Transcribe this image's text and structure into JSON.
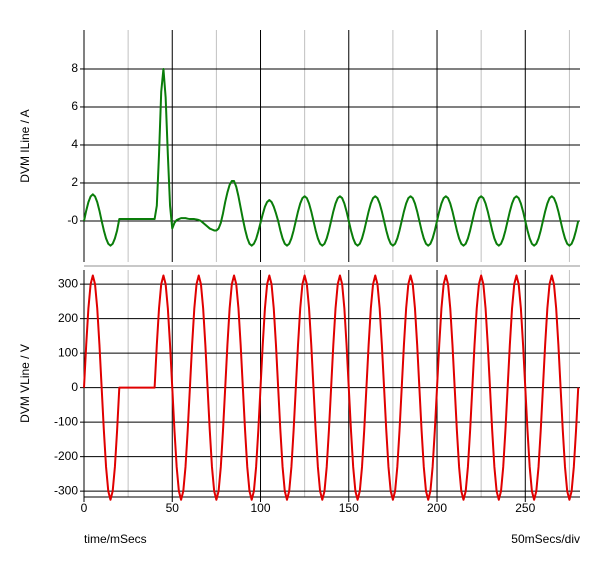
{
  "chart_data": [
    {
      "type": "line",
      "ylabel": "DVM ILine / A",
      "xlim": [
        0,
        281
      ],
      "xminorticks": [
        25,
        75,
        125,
        175,
        225,
        275
      ],
      "xgrid": [
        0,
        50,
        100,
        150,
        200,
        250
      ],
      "ylim": [
        -2.16,
        10.05
      ],
      "yticks": [
        {
          "value": 0,
          "label": "-0"
        },
        2,
        4,
        6,
        8
      ],
      "grid": true,
      "series": [
        {
          "color": "#0a7d0a",
          "x": [
            0,
            1.25,
            2.5,
            3.75,
            5,
            6.25,
            7.5,
            8.75,
            10,
            11.25,
            12.5,
            13.75,
            15,
            16.25,
            17.5,
            18.75,
            20,
            21.25,
            22.5,
            23.75,
            25,
            26.25,
            27.5,
            28.75,
            30,
            31.25,
            32.5,
            33.75,
            35,
            36.25,
            37.5,
            38.75,
            40,
            41.25,
            42.5,
            43.75,
            45,
            46.25,
            47.5,
            48.75,
            50,
            51.25,
            52.5,
            53.75,
            55,
            56.25,
            57.5,
            58.75,
            60,
            61.25,
            62.5,
            63.75,
            65,
            66.25,
            67.5,
            68.75,
            70,
            71.25,
            72.5,
            73.75,
            75,
            76.25,
            77.5,
            78.75,
            80,
            81.25,
            82.5,
            83.75,
            85,
            86.25,
            87.5,
            88.75,
            90,
            91.25,
            92.5,
            93.75,
            95,
            96.25,
            97.5,
            98.75,
            100,
            101.25,
            102.5,
            103.75,
            105,
            106.25,
            107.5,
            108.75,
            110,
            111.25,
            112.5,
            113.75,
            115,
            116.25,
            117.5,
            118.75,
            120,
            121.25,
            122.5,
            123.75,
            125,
            126.25,
            127.5,
            128.75,
            130,
            131.25,
            132.5,
            133.75,
            135,
            136.25,
            137.5,
            138.75,
            140,
            141.25,
            142.5,
            143.75,
            145,
            146.25,
            147.5,
            148.75,
            150,
            151.25,
            152.5,
            153.75,
            155,
            156.25,
            157.5,
            158.75,
            160,
            161.25,
            162.5,
            163.75,
            165,
            166.25,
            167.5,
            168.75,
            170,
            171.25,
            172.5,
            173.75,
            175,
            176.25,
            177.5,
            178.75,
            180,
            181.25,
            182.5,
            183.75,
            185,
            186.25,
            187.5,
            188.75,
            190,
            191.25,
            192.5,
            193.75,
            195,
            196.25,
            197.5,
            198.75,
            200,
            201.25,
            202.5,
            203.75,
            205,
            206.25,
            207.5,
            208.75,
            210,
            211.25,
            212.5,
            213.75,
            215,
            216.25,
            217.5,
            218.75,
            220,
            221.25,
            222.5,
            223.75,
            225,
            226.25,
            227.5,
            228.75,
            230,
            231.25,
            232.5,
            233.75,
            235,
            236.25,
            237.5,
            238.75,
            240,
            241.25,
            242.5,
            243.75,
            245,
            246.25,
            247.5,
            248.75,
            250,
            251.25,
            252.5,
            253.75,
            255,
            256.25,
            257.5,
            258.75,
            260,
            261.25,
            262.5,
            263.75,
            265,
            266.25,
            267.5,
            268.75,
            270,
            271.25,
            272.5,
            273.75,
            275,
            276.25,
            277.5,
            278.75,
            280
          ],
          "values": [
            0,
            0.54,
            0.99,
            1.29,
            1.4,
            1.29,
            0.99,
            0.54,
            0,
            -0.5,
            -0.92,
            -1.2,
            -1.3,
            -1.2,
            -0.92,
            -0.5,
            0.1,
            0.1,
            0.1,
            0.1,
            0.1,
            0.1,
            0.1,
            0.1,
            0.1,
            0.1,
            0.1,
            0.1,
            0.1,
            0.1,
            0.1,
            0.1,
            0.1,
            0.8,
            3.5,
            6.8,
            8.0,
            6.5,
            3.5,
            0.8,
            -0.4,
            -0.1,
            0.05,
            0.1,
            0.15,
            0.15,
            0.15,
            0.12,
            0.1,
            0.1,
            0.1,
            0.08,
            0.05,
            0,
            -0.1,
            -0.2,
            -0.3,
            -0.4,
            -0.45,
            -0.5,
            -0.5,
            -0.4,
            -0.1,
            0.4,
            1.0,
            1.5,
            1.9,
            2.1,
            2.1,
            1.8,
            1.3,
            0.7,
            0.1,
            -0.45,
            -0.9,
            -1.2,
            -1.3,
            -1.2,
            -0.95,
            -0.55,
            -0.1,
            0.35,
            0.75,
            1.0,
            1.1,
            1.0,
            0.75,
            0.4,
            0,
            -0.5,
            -0.92,
            -1.2,
            -1.3,
            -1.2,
            -0.92,
            -0.5,
            0,
            0.5,
            0.92,
            1.2,
            1.3,
            1.2,
            0.92,
            0.5,
            0,
            -0.5,
            -0.92,
            -1.2,
            -1.3,
            -1.2,
            -0.92,
            -0.5,
            0,
            0.5,
            0.92,
            1.2,
            1.3,
            1.2,
            0.92,
            0.5,
            0,
            -0.5,
            -0.92,
            -1.2,
            -1.3,
            -1.2,
            -0.92,
            -0.5,
            0,
            0.5,
            0.92,
            1.2,
            1.3,
            1.2,
            0.92,
            0.5,
            0,
            -0.5,
            -0.92,
            -1.2,
            -1.3,
            -1.2,
            -0.92,
            -0.5,
            0,
            0.5,
            0.92,
            1.2,
            1.3,
            1.2,
            0.92,
            0.5,
            0,
            -0.5,
            -0.92,
            -1.2,
            -1.3,
            -1.2,
            -0.92,
            -0.5,
            0,
            0.5,
            0.92,
            1.2,
            1.3,
            1.2,
            0.92,
            0.5,
            0,
            -0.5,
            -0.92,
            -1.2,
            -1.3,
            -1.2,
            -0.92,
            -0.5,
            0,
            0.5,
            0.92,
            1.2,
            1.3,
            1.2,
            0.92,
            0.5,
            0,
            -0.5,
            -0.92,
            -1.2,
            -1.3,
            -1.2,
            -0.92,
            -0.5,
            0,
            0.5,
            0.92,
            1.2,
            1.3,
            1.2,
            0.92,
            0.5,
            0,
            -0.5,
            -0.92,
            -1.2,
            -1.3,
            -1.2,
            -0.92,
            -0.5,
            0,
            0.5,
            0.92,
            1.2,
            1.3,
            1.2,
            0.92,
            0.5,
            0,
            -0.5,
            -0.92,
            -1.2,
            -1.3,
            -1.2,
            -0.92,
            -0.5,
            0
          ]
        }
      ]
    },
    {
      "type": "line",
      "ylabel": "DVM VLine / V",
      "xlabel": "time/mSecs",
      "annotation": "50mSecs/div",
      "xlim": [
        0,
        281
      ],
      "xticks": [
        0,
        50,
        100,
        150,
        200,
        250
      ],
      "xminorticks": [
        25,
        75,
        125,
        175,
        225,
        275
      ],
      "ylim": [
        -317,
        341
      ],
      "yticks": [
        -300,
        -200,
        -100,
        0,
        100,
        200,
        300
      ],
      "grid": true,
      "series": [
        {
          "color": "#e00000",
          "x": [
            0,
            1.25,
            2.5,
            3.75,
            5,
            6.25,
            7.5,
            8.75,
            10,
            11.25,
            12.5,
            13.75,
            15,
            16.25,
            17.5,
            18.75,
            20,
            21.25,
            22.5,
            23.75,
            25,
            26.25,
            27.5,
            28.75,
            30,
            31.25,
            32.5,
            33.75,
            35,
            36.25,
            37.5,
            38.75,
            40,
            41.25,
            42.5,
            43.75,
            45,
            46.25,
            47.5,
            48.75,
            50,
            51.25,
            52.5,
            53.75,
            55,
            56.25,
            57.5,
            58.75,
            60,
            61.25,
            62.5,
            63.75,
            65,
            66.25,
            67.5,
            68.75,
            70,
            71.25,
            72.5,
            73.75,
            75,
            76.25,
            77.5,
            78.75,
            80,
            81.25,
            82.5,
            83.75,
            85,
            86.25,
            87.5,
            88.75,
            90,
            91.25,
            92.5,
            93.75,
            95,
            96.25,
            97.5,
            98.75,
            100,
            101.25,
            102.5,
            103.75,
            105,
            106.25,
            107.5,
            108.75,
            110,
            111.25,
            112.5,
            113.75,
            115,
            116.25,
            117.5,
            118.75,
            120,
            121.25,
            122.5,
            123.75,
            125,
            126.25,
            127.5,
            128.75,
            130,
            131.25,
            132.5,
            133.75,
            135,
            136.25,
            137.5,
            138.75,
            140,
            141.25,
            142.5,
            143.75,
            145,
            146.25,
            147.5,
            148.75,
            150,
            151.25,
            152.5,
            153.75,
            155,
            156.25,
            157.5,
            158.75,
            160,
            161.25,
            162.5,
            163.75,
            165,
            166.25,
            167.5,
            168.75,
            170,
            171.25,
            172.5,
            173.75,
            175,
            176.25,
            177.5,
            178.75,
            180,
            181.25,
            182.5,
            183.75,
            185,
            186.25,
            187.5,
            188.75,
            190,
            191.25,
            192.5,
            193.75,
            195,
            196.25,
            197.5,
            198.75,
            200,
            201.25,
            202.5,
            203.75,
            205,
            206.25,
            207.5,
            208.75,
            210,
            211.25,
            212.5,
            213.75,
            215,
            216.25,
            217.5,
            218.75,
            220,
            221.25,
            222.5,
            223.75,
            225,
            226.25,
            227.5,
            228.75,
            230,
            231.25,
            232.5,
            233.75,
            235,
            236.25,
            237.5,
            238.75,
            240,
            241.25,
            242.5,
            243.75,
            245,
            246.25,
            247.5,
            248.75,
            250,
            251.25,
            252.5,
            253.75,
            255,
            256.25,
            257.5,
            258.75,
            260,
            261.25,
            262.5,
            263.75,
            265,
            266.25,
            267.5,
            268.75,
            270,
            271.25,
            272.5,
            273.75,
            275,
            276.25,
            277.5,
            278.75,
            280
          ],
          "values": [
            0,
            124,
            230,
            300,
            325,
            300,
            230,
            124,
            0,
            -124,
            -230,
            -300,
            -325,
            -300,
            -230,
            -124,
            0,
            0,
            0,
            0,
            0,
            0,
            0,
            0,
            0,
            0,
            0,
            0,
            0,
            0,
            0,
            0,
            0,
            124,
            230,
            300,
            325,
            300,
            230,
            124,
            0,
            -124,
            -230,
            -300,
            -325,
            -300,
            -230,
            -124,
            0,
            124,
            230,
            300,
            325,
            300,
            230,
            124,
            0,
            -124,
            -230,
            -300,
            -325,
            -300,
            -230,
            -124,
            0,
            124,
            230,
            300,
            325,
            300,
            230,
            124,
            0,
            -124,
            -230,
            -300,
            -325,
            -300,
            -230,
            -124,
            0,
            124,
            230,
            300,
            325,
            300,
            230,
            124,
            0,
            -124,
            -230,
            -300,
            -325,
            -300,
            -230,
            -124,
            0,
            124,
            230,
            300,
            325,
            300,
            230,
            124,
            0,
            -124,
            -230,
            -300,
            -325,
            -300,
            -230,
            -124,
            0,
            124,
            230,
            300,
            325,
            300,
            230,
            124,
            0,
            -124,
            -230,
            -300,
            -325,
            -300,
            -230,
            -124,
            0,
            124,
            230,
            300,
            325,
            300,
            230,
            124,
            0,
            -124,
            -230,
            -300,
            -325,
            -300,
            -230,
            -124,
            0,
            124,
            230,
            300,
            325,
            300,
            230,
            124,
            0,
            -124,
            -230,
            -300,
            -325,
            -300,
            -230,
            -124,
            0,
            124,
            230,
            300,
            325,
            300,
            230,
            124,
            0,
            -124,
            -230,
            -300,
            -325,
            -300,
            -230,
            -124,
            0,
            124,
            230,
            300,
            325,
            300,
            230,
            124,
            0,
            -124,
            -230,
            -300,
            -325,
            -300,
            -230,
            -124,
            0,
            124,
            230,
            300,
            325,
            300,
            230,
            124,
            0,
            -124,
            -230,
            -300,
            -325,
            -300,
            -230,
            -124,
            0,
            124,
            230,
            300,
            325,
            300,
            230,
            124,
            0,
            -124,
            -230,
            -300,
            -325,
            -300,
            -230,
            -124,
            0
          ]
        }
      ]
    }
  ]
}
